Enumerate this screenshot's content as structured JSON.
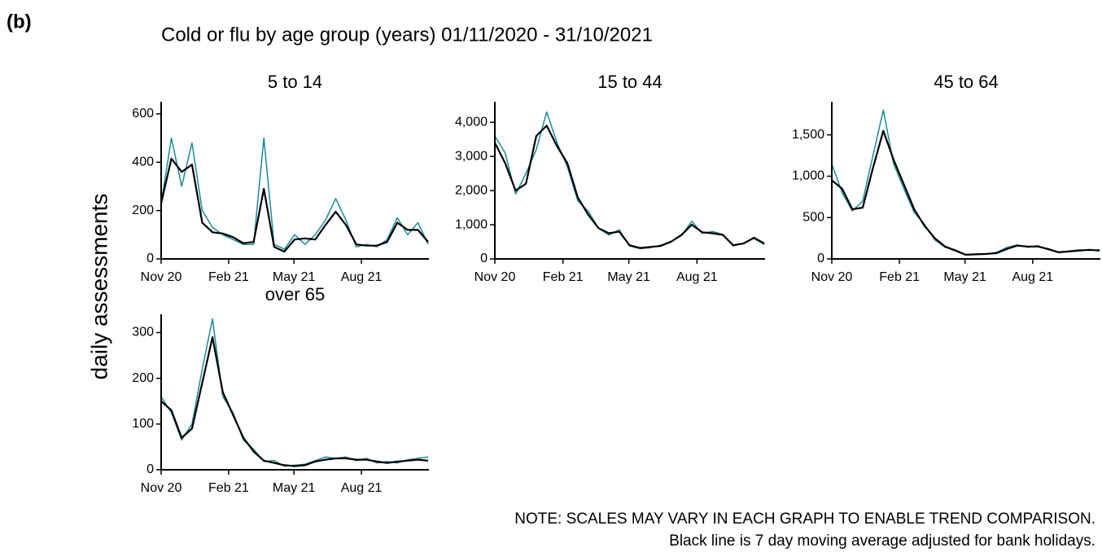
{
  "figure_label": "(b)",
  "title": "Cold or flu by age group (years) 01/11/2020 - 31/10/2021",
  "ylabel": "daily assessments",
  "notes": [
    "NOTE: SCALES MAY VARY IN EACH GRAPH TO ENABLE TREND COMPARISON.",
    "Black line is 7 day moving average adjusted for bank holidays."
  ],
  "chart_data": [
    {
      "type": "line",
      "title": "5 to 14",
      "x": [
        0,
        14,
        28,
        42,
        56,
        70,
        84,
        98,
        112,
        126,
        140,
        154,
        168,
        182,
        196,
        210,
        224,
        238,
        252,
        266,
        280,
        294,
        308,
        322,
        336,
        350,
        364
      ],
      "xlim": [
        0,
        365
      ],
      "xticks": [
        {
          "value": 0,
          "label": "Nov 20"
        },
        {
          "value": 92,
          "label": "Feb 21"
        },
        {
          "value": 181,
          "label": "May 21"
        },
        {
          "value": 273,
          "label": "Aug 21"
        }
      ],
      "ylim": [
        0,
        650
      ],
      "yticks": [
        0,
        200,
        400,
        600
      ],
      "series": [
        {
          "color": "#1a8a9a",
          "values": [
            230,
            500,
            300,
            480,
            200,
            130,
            100,
            80,
            60,
            60,
            500,
            60,
            40,
            100,
            60,
            100,
            160,
            250,
            160,
            50,
            60,
            50,
            80,
            170,
            100,
            150,
            60
          ]
        },
        {
          "color": "#000000",
          "values": [
            230,
            415,
            360,
            390,
            150,
            110,
            105,
            90,
            65,
            70,
            290,
            50,
            30,
            80,
            85,
            80,
            140,
            195,
            140,
            60,
            55,
            55,
            70,
            150,
            120,
            120,
            70
          ]
        }
      ]
    },
    {
      "type": "line",
      "title": "15 to 44",
      "x": [
        0,
        14,
        28,
        42,
        56,
        70,
        84,
        98,
        112,
        126,
        140,
        154,
        168,
        182,
        196,
        210,
        224,
        238,
        252,
        266,
        280,
        294,
        308,
        322,
        336,
        350,
        364
      ],
      "xlim": [
        0,
        365
      ],
      "xticks": [
        {
          "value": 0,
          "label": "Nov 20"
        },
        {
          "value": 92,
          "label": "Feb 21"
        },
        {
          "value": 181,
          "label": "May 21"
        },
        {
          "value": 273,
          "label": "Aug 21"
        }
      ],
      "ylim": [
        0,
        4600
      ],
      "yticks": [
        0,
        {
          "value": 1000,
          "label": "1,000"
        },
        {
          "value": 2000,
          "label": "2,000"
        },
        {
          "value": 3000,
          "label": "3,000"
        },
        {
          "value": 4000,
          "label": "4,000"
        }
      ],
      "series": [
        {
          "color": "#1a8a9a",
          "values": [
            3600,
            3100,
            1900,
            2500,
            3200,
            4300,
            3400,
            2700,
            1700,
            1400,
            900,
            700,
            850,
            380,
            300,
            330,
            400,
            520,
            680,
            1100,
            750,
            800,
            720,
            380,
            460,
            600,
            420
          ]
        },
        {
          "color": "#000000",
          "values": [
            3400,
            2800,
            2000,
            2200,
            3600,
            3900,
            3300,
            2800,
            1800,
            1300,
            900,
            750,
            800,
            400,
            320,
            350,
            380,
            500,
            700,
            1000,
            780,
            750,
            700,
            400,
            450,
            620,
            450
          ]
        }
      ]
    },
    {
      "type": "line",
      "title": "45 to 64",
      "x": [
        0,
        14,
        28,
        42,
        56,
        70,
        84,
        98,
        112,
        126,
        140,
        154,
        168,
        182,
        196,
        210,
        224,
        238,
        252,
        266,
        280,
        294,
        308,
        322,
        336,
        350,
        364
      ],
      "xlim": [
        0,
        365
      ],
      "xticks": [
        {
          "value": 0,
          "label": "Nov 20"
        },
        {
          "value": 92,
          "label": "Feb 21"
        },
        {
          "value": 181,
          "label": "May 21"
        },
        {
          "value": 273,
          "label": "Aug 21"
        }
      ],
      "ylim": [
        0,
        1900
      ],
      "yticks": [
        0,
        500,
        {
          "value": 1000,
          "label": "1,000"
        },
        {
          "value": 1500,
          "label": "1,500"
        }
      ],
      "series": [
        {
          "color": "#1a8a9a",
          "values": [
            1150,
            800,
            580,
            700,
            1250,
            1800,
            1150,
            850,
            560,
            420,
            230,
            140,
            110,
            50,
            60,
            55,
            80,
            140,
            170,
            140,
            160,
            110,
            85,
            95,
            110,
            100,
            110
          ]
        },
        {
          "color": "#000000",
          "values": [
            950,
            850,
            600,
            620,
            1100,
            1550,
            1200,
            900,
            600,
            400,
            250,
            150,
            100,
            50,
            55,
            60,
            70,
            120,
            160,
            150,
            150,
            120,
            80,
            90,
            100,
            110,
            100
          ]
        }
      ]
    },
    {
      "type": "line",
      "title": "over 65",
      "x": [
        0,
        14,
        28,
        42,
        56,
        70,
        84,
        98,
        112,
        126,
        140,
        154,
        168,
        182,
        196,
        210,
        224,
        238,
        252,
        266,
        280,
        294,
        308,
        322,
        336,
        350,
        364
      ],
      "xlim": [
        0,
        365
      ],
      "xticks": [
        {
          "value": 0,
          "label": "Nov 20"
        },
        {
          "value": 92,
          "label": "Feb 21"
        },
        {
          "value": 181,
          "label": "May 21"
        },
        {
          "value": 273,
          "label": "Aug 21"
        }
      ],
      "ylim": [
        0,
        340
      ],
      "yticks": [
        0,
        100,
        200,
        300
      ],
      "series": [
        {
          "color": "#1a8a9a",
          "values": [
            160,
            125,
            65,
            100,
            220,
            330,
            160,
            125,
            65,
            45,
            18,
            20,
            8,
            10,
            12,
            20,
            28,
            25,
            28,
            20,
            25,
            15,
            18,
            15,
            22,
            25,
            28
          ]
        },
        {
          "color": "#000000",
          "values": [
            150,
            130,
            70,
            90,
            190,
            290,
            170,
            120,
            70,
            40,
            20,
            15,
            10,
            8,
            10,
            18,
            22,
            25,
            25,
            22,
            22,
            18,
            15,
            18,
            20,
            22,
            20
          ]
        }
      ]
    }
  ]
}
